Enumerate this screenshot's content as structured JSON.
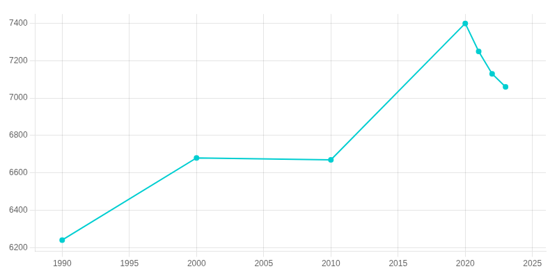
{
  "chart_data": {
    "type": "line",
    "x": [
      1990,
      2000,
      2010,
      2020,
      2021,
      2022,
      2023
    ],
    "values": [
      6240,
      6680,
      6670,
      7400,
      7250,
      7130,
      7060
    ],
    "color": "#00CED1",
    "marker": "circle",
    "xlim": [
      1988,
      2026
    ],
    "ylim": [
      6180,
      7450
    ],
    "xticks": [
      1990,
      1995,
      2000,
      2005,
      2010,
      2015,
      2020,
      2025
    ],
    "yticks": [
      6200,
      6400,
      6600,
      6800,
      7000,
      7200,
      7400
    ],
    "grid": true
  }
}
